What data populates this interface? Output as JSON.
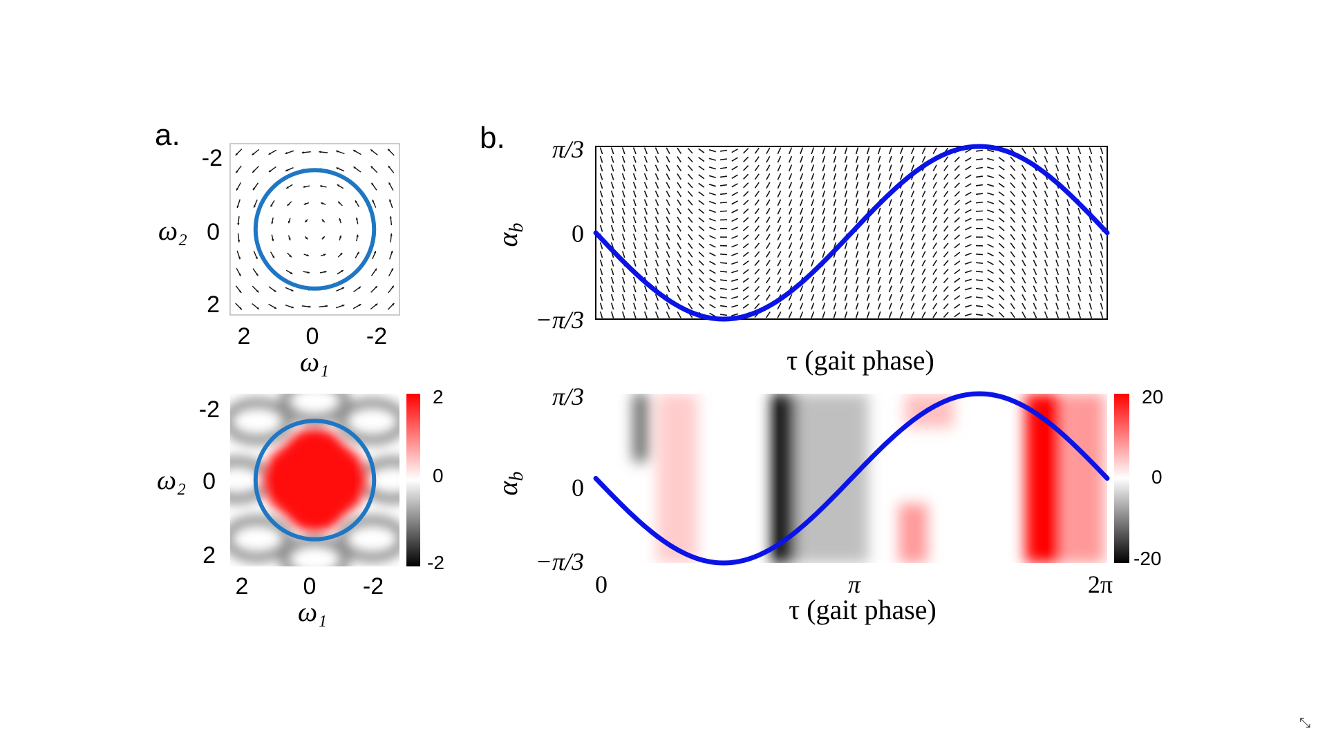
{
  "figure": {
    "panel_a_label": "a.",
    "panel_b_label": "b."
  },
  "colors": {
    "circle": "#1f77c4",
    "curve": "#0a14e6",
    "positive": "#ff1010",
    "negative": "#000000",
    "neutral": "#ffffff"
  },
  "chart_data": [
    {
      "id": "a-top",
      "type": "quiver",
      "xlabel": "ω₁",
      "ylabel": "ω₂",
      "xticks": [
        "2",
        "0",
        "-2"
      ],
      "yticks": [
        "-2",
        "0",
        "2"
      ],
      "xlim": [
        2.5,
        -2.5
      ],
      "ylim": [
        -2.5,
        2.5
      ],
      "circle_radius": 1.75,
      "field": "rotational"
    },
    {
      "id": "a-bottom",
      "type": "heatmap",
      "xlabel": "ω₁",
      "ylabel": "ω₂",
      "xticks": [
        "2",
        "0",
        "-2"
      ],
      "yticks": [
        "-2",
        "0",
        "2"
      ],
      "xlim": [
        2.5,
        -2.5
      ],
      "ylim": [
        -2.5,
        2.5
      ],
      "circle_radius": 1.75,
      "colorbar": {
        "range": [
          -2,
          2
        ],
        "ticks": [
          "2",
          "0",
          "-2"
        ]
      }
    },
    {
      "id": "b-top",
      "type": "quiver",
      "xlabel": "τ (gait phase)",
      "ylabel": "αb",
      "ylabel_main": "α",
      "ylabel_sub": "b",
      "yticks": [
        "π/3",
        "0",
        "−π/3"
      ],
      "xlim": [
        0,
        6.2832
      ],
      "ylim": [
        -1.0472,
        1.0472
      ],
      "curve": {
        "function": "-sin",
        "amplitude": 1.0472
      }
    },
    {
      "id": "b-bottom",
      "type": "heatmap",
      "xlabel": "τ (gait phase)",
      "ylabel": "αb",
      "ylabel_main": "α",
      "ylabel_sub": "b",
      "xticks": [
        "0",
        "π",
        "2π"
      ],
      "yticks": [
        "π/3",
        "0",
        "−π/3"
      ],
      "xlim": [
        0,
        6.2832
      ],
      "ylim": [
        -1.0472,
        1.0472
      ],
      "curve": {
        "function": "-sin",
        "amplitude": 1.0472
      },
      "colorbar": {
        "range": [
          -20,
          20
        ],
        "ticks": [
          "20",
          "0",
          "-20"
        ]
      },
      "bands": [
        {
          "tau": 0.55,
          "value": -12,
          "width": 0.18,
          "yfrom": 0.2,
          "yto": 1.0
        },
        {
          "tau": 1.0,
          "value": 4,
          "width": 0.5,
          "yfrom": -1,
          "yto": 1
        },
        {
          "tau": 2.32,
          "value": -20,
          "width": 0.32,
          "yfrom": -1,
          "yto": 1
        },
        {
          "tau": 2.9,
          "value": -5,
          "width": 0.9,
          "yfrom": -1,
          "yto": 1
        },
        {
          "tau": 3.9,
          "value": 8,
          "width": 0.35,
          "yfrom": -1,
          "yto": -0.3
        },
        {
          "tau": 4.1,
          "value": 5,
          "width": 0.6,
          "yfrom": 0.6,
          "yto": 1
        },
        {
          "tau": 5.5,
          "value": 20,
          "width": 0.45,
          "yfrom": -1,
          "yto": 1
        },
        {
          "tau": 6.0,
          "value": 8,
          "width": 0.5,
          "yfrom": -1,
          "yto": 1
        }
      ]
    }
  ]
}
